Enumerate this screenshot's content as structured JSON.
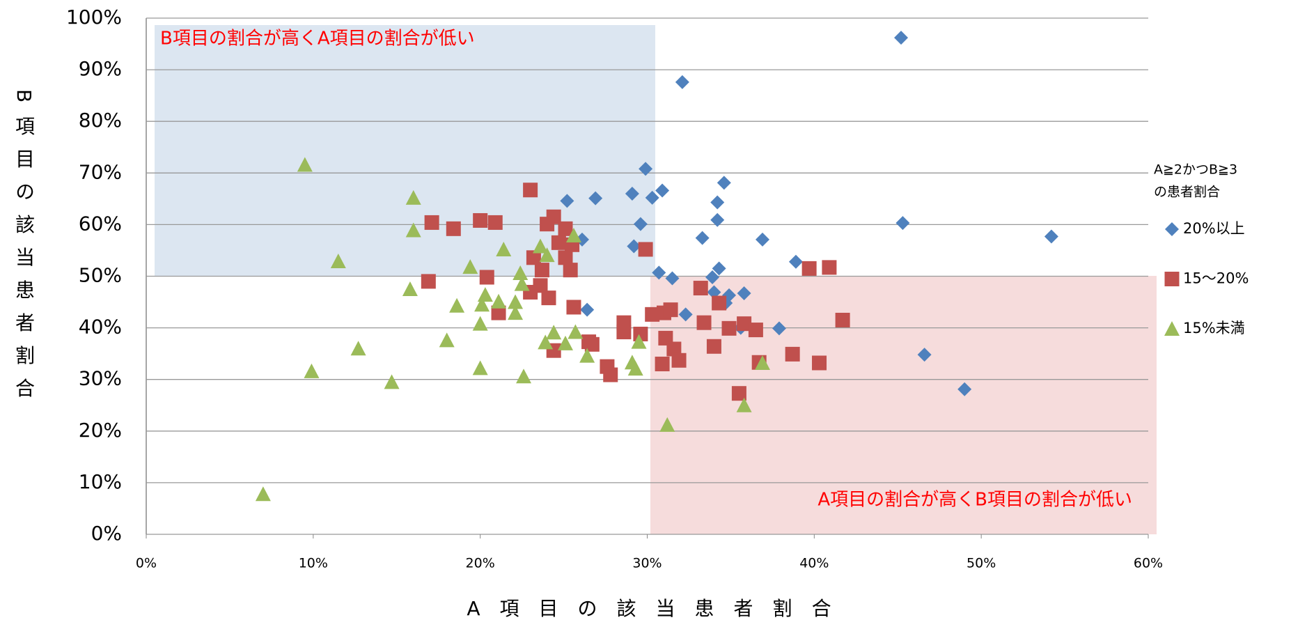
{
  "chart_data": {
    "type": "scatter",
    "xlabel": "A　項　目　の　該　当　患　者　割　合",
    "ylabel": "B項目の該当患者割合",
    "annotations": [
      "B項目の割合が高くA項目の割合が低い",
      "A項目の割合が高くB項目の割合が低い"
    ],
    "legend_title": [
      "A≧2かつB≧3",
      "の患者割合"
    ],
    "legend": "right",
    "grid": true,
    "xlim": [
      0,
      60
    ],
    "ylim": [
      0,
      100
    ],
    "xticks": [
      {
        "value": 0,
        "label": "0%"
      },
      {
        "value": 10,
        "label": "10%"
      },
      {
        "value": 20,
        "label": "20%"
      },
      {
        "value": 30,
        "label": "30%"
      },
      {
        "value": 40,
        "label": "40%"
      },
      {
        "value": 50,
        "label": "50%"
      },
      {
        "value": 60,
        "label": "60%"
      }
    ],
    "yticks": [
      {
        "value": 0,
        "label": "0%"
      },
      {
        "value": 10,
        "label": "10%"
      },
      {
        "value": 20,
        "label": "20%"
      },
      {
        "value": 30,
        "label": "30%"
      },
      {
        "value": 40,
        "label": "40%"
      },
      {
        "value": 50,
        "label": "50%"
      },
      {
        "value": 60,
        "label": "60%"
      },
      {
        "value": 70,
        "label": "70%"
      },
      {
        "value": 80,
        "label": "80%"
      },
      {
        "value": 90,
        "label": "90%"
      },
      {
        "value": 100,
        "label": "100%"
      }
    ],
    "series": [
      {
        "name": "20%以上",
        "color": "#4f81bd",
        "marker": "diamond",
        "x": [
          45.2,
          32.1,
          29.9,
          34.6,
          30.9,
          26.9,
          29.1,
          30.3,
          25.2,
          34.2,
          34.2,
          29.6,
          45.3,
          54.2,
          33.3,
          36.9,
          26.1,
          29.2,
          38.9,
          34.3,
          30.7,
          33.9,
          31.5,
          34.0,
          34.9,
          35.8,
          34.7,
          26.4,
          32.3,
          37.9,
          35.6,
          46.6,
          49.0
        ],
        "values": [
          96.2,
          87.6,
          70.8,
          68.1,
          66.6,
          65.1,
          66.0,
          65.2,
          64.6,
          64.3,
          60.9,
          60.1,
          60.3,
          57.7,
          57.4,
          57.1,
          57.1,
          55.8,
          52.8,
          51.5,
          50.7,
          49.8,
          49.6,
          46.9,
          46.3,
          46.7,
          44.8,
          43.5,
          42.6,
          39.9,
          40.0,
          34.8,
          28.1
        ]
      },
      {
        "name": "15〜20%",
        "color": "#c0504d",
        "marker": "square",
        "x": [
          23.0,
          17.1,
          18.4,
          20.0,
          20.9,
          24.4,
          24.0,
          25.1,
          24.7,
          29.9,
          23.2,
          25.1,
          25.4,
          23.7,
          20.4,
          16.9,
          23.6,
          23.0,
          24.1,
          25.6,
          21.1,
          33.2,
          34.3,
          30.3,
          31.0,
          31.4,
          39.7,
          40.9,
          41.7,
          35.8,
          33.4,
          28.6,
          28.6,
          34.9,
          36.5,
          29.6,
          31.1,
          34.0,
          31.6,
          26.5,
          26.7,
          24.4,
          38.7,
          31.9,
          30.9,
          27.6,
          27.8,
          36.7,
          40.3,
          35.5,
          25.5
        ],
        "values": [
          66.7,
          60.4,
          59.2,
          60.8,
          60.4,
          61.5,
          60.1,
          59.2,
          56.5,
          55.2,
          53.6,
          53.6,
          51.2,
          51.2,
          49.8,
          49.0,
          48.2,
          46.9,
          45.8,
          44.0,
          42.9,
          47.7,
          44.8,
          42.6,
          42.9,
          43.5,
          51.5,
          51.7,
          41.5,
          40.8,
          41.0,
          41.0,
          39.2,
          39.9,
          39.6,
          38.8,
          38.0,
          36.4,
          35.9,
          37.3,
          36.8,
          35.6,
          34.9,
          33.7,
          33.0,
          32.5,
          30.9,
          33.3,
          33.2,
          27.3,
          56.1
        ]
      },
      {
        "name": "15%未満",
        "color": "#9bbb59",
        "marker": "triangle",
        "x": [
          9.5,
          16.0,
          16.0,
          11.5,
          19.4,
          21.4,
          23.6,
          24.0,
          25.6,
          22.4,
          22.5,
          15.8,
          20.3,
          18.6,
          20.1,
          21.1,
          22.1,
          22.1,
          20.0,
          18.0,
          25.7,
          24.4,
          23.9,
          25.1,
          26.4,
          29.5,
          29.1,
          29.3,
          20.0,
          12.7,
          9.9,
          14.7,
          22.6,
          36.9,
          35.8,
          31.2,
          7.0
        ],
        "values": [
          71.6,
          65.2,
          58.9,
          52.9,
          51.8,
          55.2,
          55.8,
          54.1,
          57.9,
          50.6,
          48.5,
          47.5,
          46.4,
          44.3,
          44.5,
          45.1,
          45.0,
          42.9,
          40.8,
          37.6,
          39.2,
          39.1,
          37.2,
          37.0,
          34.6,
          37.3,
          33.3,
          32.1,
          32.2,
          36.0,
          31.6,
          29.5,
          30.6,
          33.2,
          25.0,
          21.2,
          7.8
        ]
      }
    ]
  }
}
